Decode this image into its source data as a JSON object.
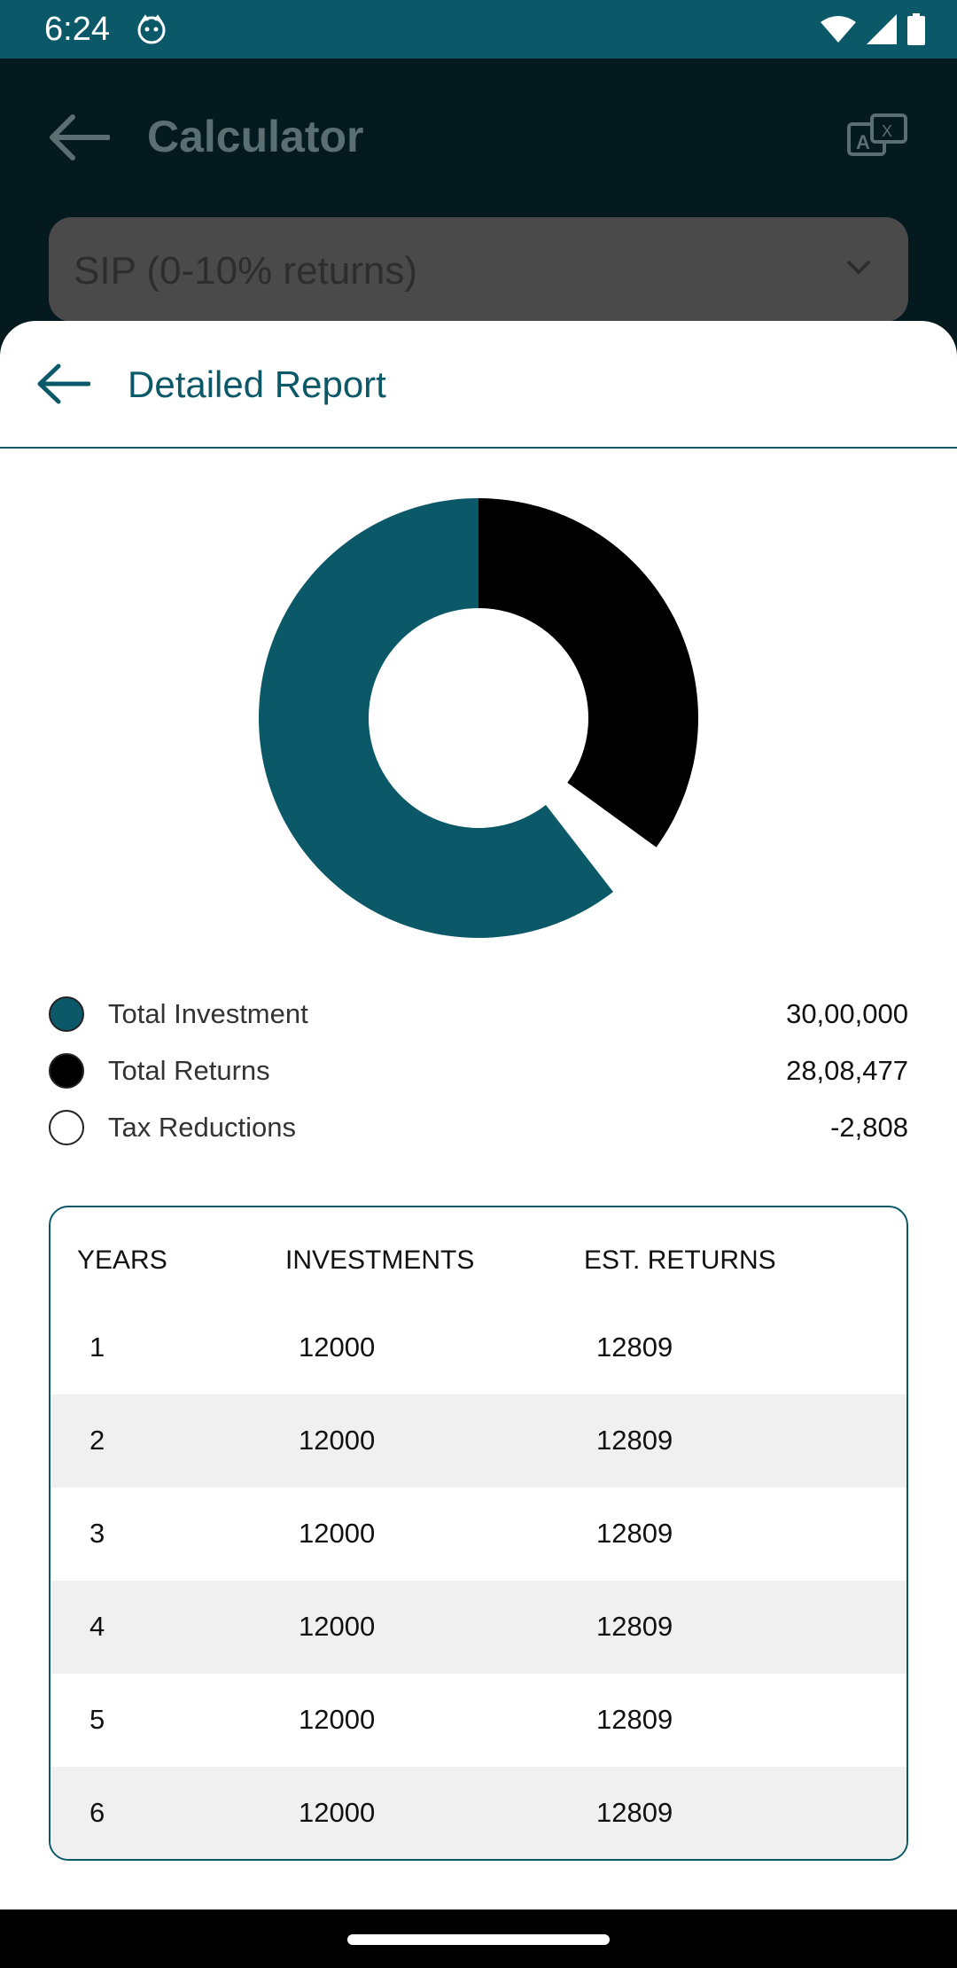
{
  "status_bar": {
    "time": "6:24",
    "app_icon": "cat-face-icon",
    "icons": [
      "wifi-icon",
      "cell-signal-icon",
      "battery-icon"
    ],
    "color": "#0a5868"
  },
  "background_app": {
    "title": "Calculator",
    "select_value": "SIP (0-10% returns)"
  },
  "sheet": {
    "title": "Detailed Report"
  },
  "chart_data": {
    "type": "pie",
    "style": "donut",
    "categories": [
      "Total Investment",
      "Total Returns",
      "Tax Reductions"
    ],
    "values": [
      3000000,
      2808477,
      -2808
    ],
    "colors": [
      "#0a5868",
      "#000000",
      "#ffffff"
    ]
  },
  "legend": [
    {
      "label": "Total Investment",
      "value": "30,00,000",
      "color": "#0a5868"
    },
    {
      "label": "Total Returns",
      "value": "28,08,477",
      "color": "#000000"
    },
    {
      "label": "Tax Reductions",
      "value": "-2,808",
      "color": "#ffffff"
    }
  ],
  "table": {
    "headers": [
      "YEARS",
      "INVESTMENTS",
      "EST. RETURNS"
    ],
    "rows": [
      [
        "1",
        "12000",
        "12809"
      ],
      [
        "2",
        "12000",
        "12809"
      ],
      [
        "3",
        "12000",
        "12809"
      ],
      [
        "4",
        "12000",
        "12809"
      ],
      [
        "5",
        "12000",
        "12809"
      ],
      [
        "6",
        "12000",
        "12809"
      ]
    ]
  }
}
